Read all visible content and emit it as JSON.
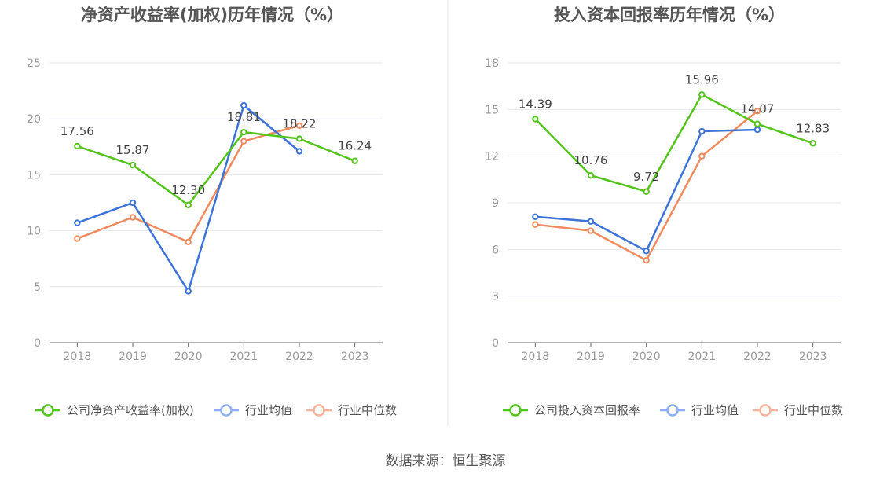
{
  "colors": {
    "company": "#52c41a",
    "industry_avg": "#3b73d9",
    "industry_median": "#f08a5d",
    "legend_avg": "#8fb0f0",
    "legend_median": "#f7b39b",
    "grid": "#e3e6ee",
    "axis": "#666666",
    "tick_text": "#999999",
    "title": "#555555",
    "divider": "#e5e5e5"
  },
  "chart_data": [
    {
      "type": "line",
      "title": "净资产收益率(加权)历年情况（%）",
      "categories": [
        "2018",
        "2019",
        "2020",
        "2021",
        "2022",
        "2023"
      ],
      "ylim": [
        0,
        25
      ],
      "yticks": [
        "0",
        "5",
        "10",
        "15",
        "20",
        "25"
      ],
      "grid": true,
      "legend_position": "bottom",
      "series": [
        {
          "name": "公司净资产收益率(加权)",
          "role": "company",
          "values": [
            17.56,
            15.87,
            12.3,
            18.81,
            18.22,
            16.24
          ],
          "labels": [
            "17.56",
            "15.87",
            "12.30",
            "18.81",
            "18.22",
            "16.24"
          ]
        },
        {
          "name": "行业均值",
          "role": "industry_avg",
          "values": [
            10.7,
            12.5,
            4.6,
            21.2,
            17.1,
            null
          ]
        },
        {
          "name": "行业中位数",
          "role": "industry_median",
          "values": [
            9.3,
            11.2,
            9.0,
            18.0,
            19.4,
            null
          ]
        }
      ]
    },
    {
      "type": "line",
      "title": "投入资本回报率历年情况（%）",
      "categories": [
        "2018",
        "2019",
        "2020",
        "2021",
        "2022",
        "2023"
      ],
      "ylim": [
        0,
        18
      ],
      "yticks": [
        "0",
        "3",
        "6",
        "9",
        "12",
        "15",
        "18"
      ],
      "grid": true,
      "legend_position": "bottom",
      "series": [
        {
          "name": "公司投入资本回报率",
          "role": "company",
          "values": [
            14.39,
            10.76,
            9.72,
            15.96,
            14.07,
            12.83
          ],
          "labels": [
            "14.39",
            "10.76",
            "9.72",
            "15.96",
            "14.07",
            "12.83"
          ]
        },
        {
          "name": "行业均值",
          "role": "industry_avg",
          "values": [
            8.1,
            7.8,
            5.9,
            13.6,
            13.7,
            null
          ]
        },
        {
          "name": "行业中位数",
          "role": "industry_median",
          "values": [
            7.6,
            7.2,
            5.3,
            12.0,
            14.9,
            null
          ]
        }
      ]
    }
  ],
  "footer": {
    "source": "数据来源：恒生聚源"
  }
}
